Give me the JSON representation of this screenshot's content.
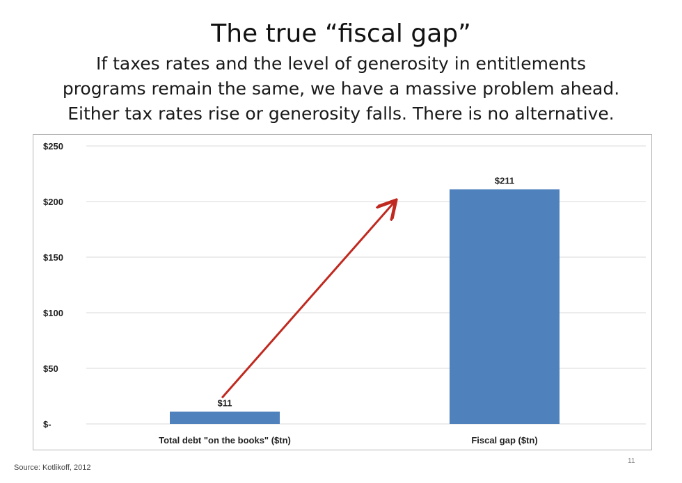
{
  "slide": {
    "title": "The true “fiscal gap”",
    "subtitle_lines": [
      "If taxes rates and the level of generosity in entitlements",
      "programs remain the same, we have a massive problem ahead.",
      "Either tax rates rise or generosity falls. There is no alternative."
    ],
    "source": "Source: Kotlikoff, 2012",
    "page_number": "11"
  },
  "chart_data": {
    "type": "bar",
    "categories": [
      "Total debt \"on the books\" ($tn)",
      "Fiscal gap ($tn)"
    ],
    "values": [
      11,
      211
    ],
    "data_labels": [
      "$11",
      "$211"
    ],
    "ylim": [
      0,
      250
    ],
    "yticks": [
      0,
      50,
      100,
      150,
      200,
      250
    ],
    "ytick_labels": [
      "$-",
      "$50",
      "$100",
      "$150",
      "$200",
      "$250"
    ],
    "grid": true,
    "bar_color": "#4f81bd",
    "annotation": {
      "type": "arrow",
      "from_bar": 0,
      "to_bar": 1,
      "color": "#c0291f"
    }
  }
}
